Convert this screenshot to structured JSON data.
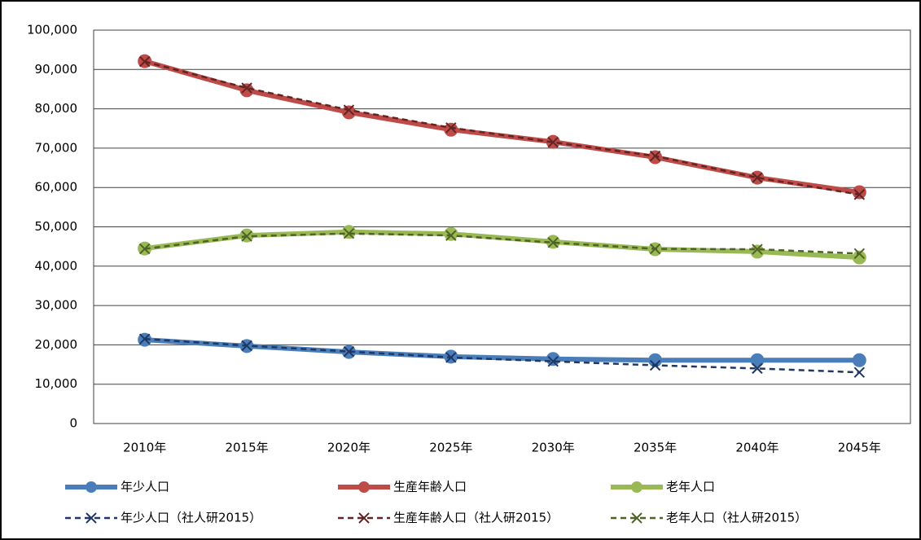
{
  "chart_data": {
    "type": "line",
    "categories": [
      "2010年",
      "2015年",
      "2020年",
      "2025年",
      "2030年",
      "2035年",
      "2040年",
      "2045年"
    ],
    "ylim": [
      0,
      100000
    ],
    "yticks": [
      0,
      {
        "value": 10000,
        "label": "10,000"
      },
      {
        "value": 20000,
        "label": "20,000"
      },
      {
        "value": 30000,
        "label": "30,000"
      },
      {
        "value": 40000,
        "label": "40,000"
      },
      {
        "value": 50000,
        "label": "50,000"
      },
      {
        "value": 60000,
        "label": "60,000"
      },
      {
        "value": 70000,
        "label": "70,000"
      },
      {
        "value": 80000,
        "label": "80,000"
      },
      {
        "value": 90000,
        "label": "90,000"
      },
      {
        "value": 100000,
        "label": "100,000"
      }
    ],
    "grid": true,
    "legend": "bottom",
    "series": [
      {
        "name": "年少人口",
        "color": "#4a7ebb",
        "dash": false,
        "marker": "circle",
        "values": [
          21300,
          19700,
          18200,
          17000,
          16400,
          16100,
          16100,
          16100
        ]
      },
      {
        "name": "生産年齢人口",
        "color": "#be4b48",
        "dash": false,
        "marker": "circle",
        "values": [
          92100,
          84700,
          79100,
          74700,
          71600,
          67700,
          62500,
          58800
        ]
      },
      {
        "name": "老年人口",
        "color": "#98b954",
        "dash": false,
        "marker": "circle",
        "values": [
          44500,
          47800,
          48700,
          48200,
          46200,
          44300,
          43700,
          42200
        ]
      },
      {
        "name": "年少人口（社人研2015）",
        "color": "#1f3864",
        "dash": true,
        "marker": "x",
        "values": [
          21500,
          19800,
          18300,
          16800,
          15800,
          14800,
          14000,
          13000
        ]
      },
      {
        "name": "生産年齢人口（社人研2015）",
        "color": "#632523",
        "dash": true,
        "marker": "x",
        "values": [
          92000,
          85300,
          79700,
          75200,
          71500,
          68000,
          62500,
          58200
        ]
      },
      {
        "name": "老年人口（社人研2015）",
        "color": "#4f6228",
        "dash": true,
        "marker": "x",
        "values": [
          44400,
          47600,
          48300,
          47800,
          46000,
          44400,
          44300,
          43200
        ]
      }
    ]
  }
}
